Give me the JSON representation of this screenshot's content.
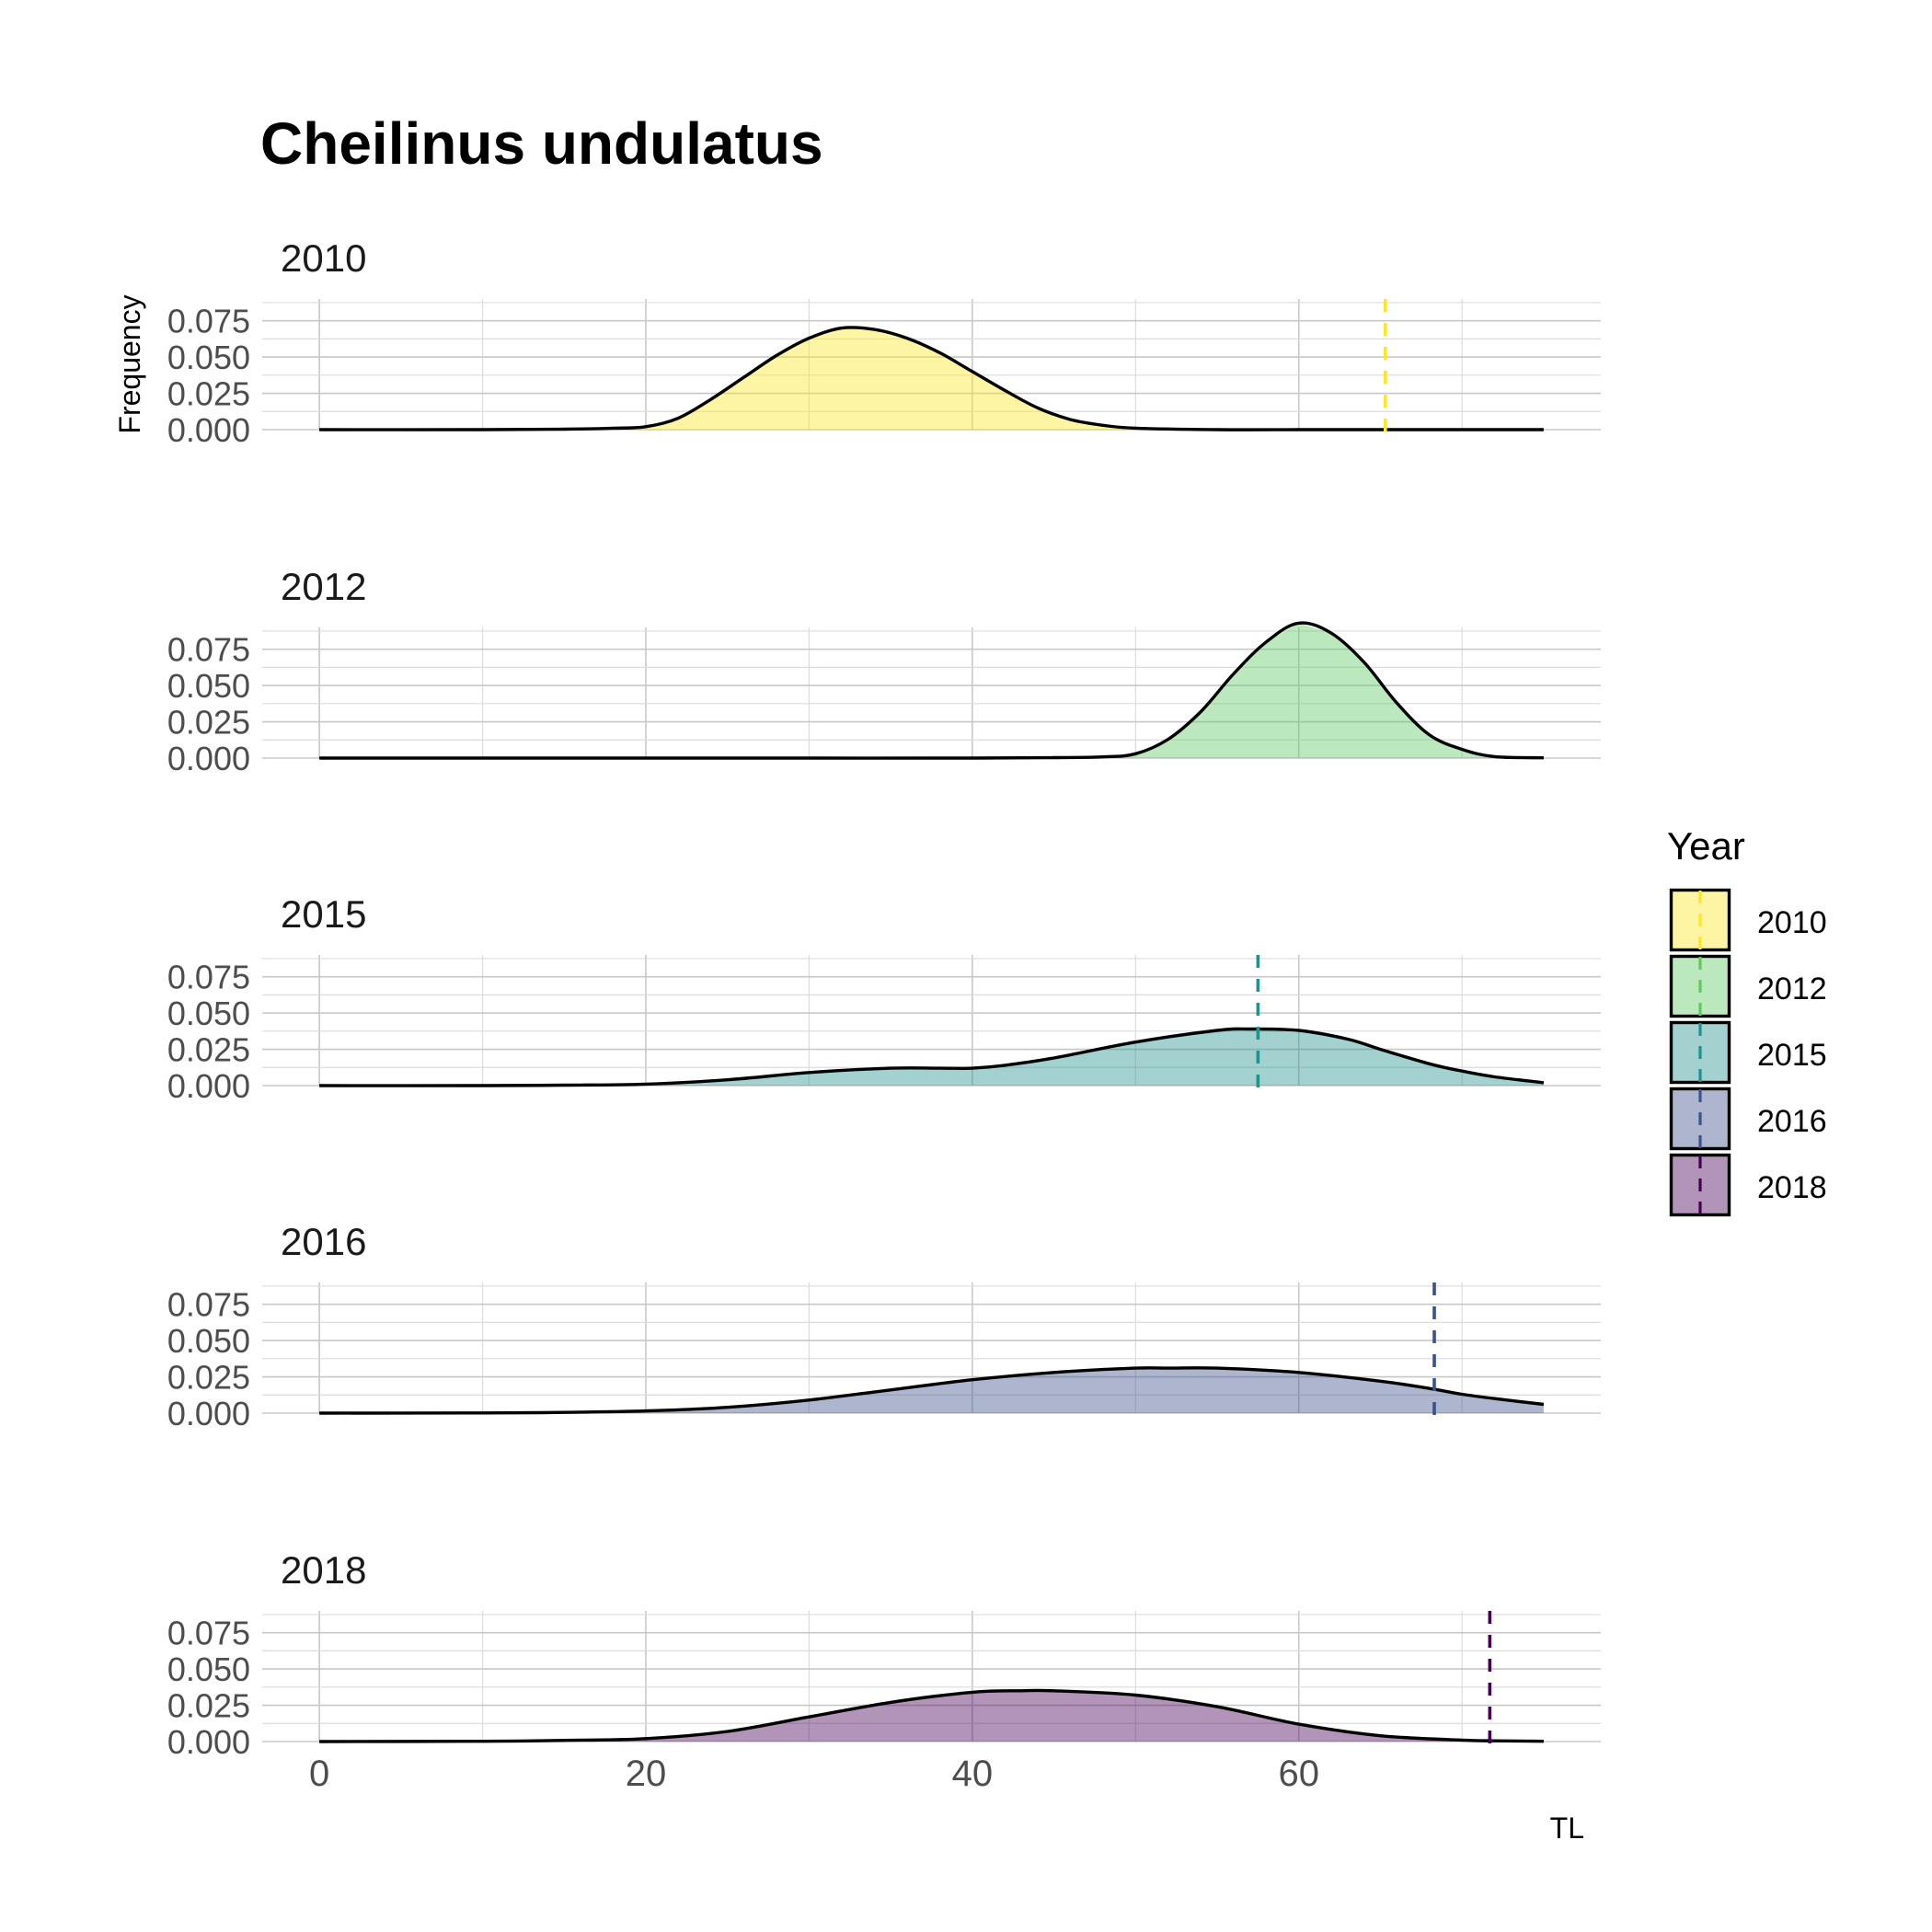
{
  "chart_data": {
    "type": "area",
    "title": "Cheilinus undulatus",
    "xlabel": "TL",
    "ylabel": "Frequency",
    "xlim": [
      -3.5,
      78.5
    ],
    "ylim": [
      0,
      0.09
    ],
    "x_ticks": [
      0,
      20,
      40,
      60
    ],
    "y_ticks": [
      0.0,
      0.025,
      0.05,
      0.075
    ],
    "y_tick_labels": [
      "0.000",
      "0.025",
      "0.050",
      "0.075"
    ],
    "grid": true,
    "legend": {
      "title": "Year",
      "position": "right",
      "entries": [
        "2010",
        "2012",
        "2015",
        "2016",
        "2018"
      ]
    },
    "panels": [
      {
        "label": "2010",
        "fill": "#FDE725",
        "line": "#FDE725",
        "cutoff": 65.3,
        "x": [
          0,
          10,
          15,
          18,
          20,
          22,
          24,
          26,
          28,
          30,
          32,
          34,
          36,
          38,
          40,
          42,
          44,
          46,
          48,
          50,
          55,
          60,
          65,
          70,
          75
        ],
        "y": [
          0,
          0,
          0.0003,
          0.001,
          0.002,
          0.008,
          0.021,
          0.036,
          0.051,
          0.063,
          0.07,
          0.069,
          0.063,
          0.053,
          0.04,
          0.027,
          0.015,
          0.007,
          0.003,
          0.001,
          0,
          0,
          0,
          0,
          0
        ]
      },
      {
        "label": "2012",
        "fill": "#5EC962",
        "line": "#5EC962",
        "cutoff": null,
        "x": [
          0,
          10,
          20,
          30,
          40,
          45,
          48,
          50,
          52,
          54,
          56,
          58,
          60,
          62,
          64,
          66,
          68,
          70,
          72,
          75
        ],
        "y": [
          0,
          0,
          0,
          0,
          0,
          0.0003,
          0.0008,
          0.003,
          0.013,
          0.032,
          0.058,
          0.08,
          0.093,
          0.086,
          0.066,
          0.038,
          0.016,
          0.006,
          0.001,
          0.0002
        ]
      },
      {
        "label": "2015",
        "fill": "#21918C",
        "line": "#21918C",
        "cutoff": 57.5,
        "x": [
          0,
          10,
          15,
          20,
          25,
          30,
          35,
          38,
          40,
          42,
          45,
          50,
          55,
          57,
          60,
          63,
          65,
          68,
          70,
          72,
          75
        ],
        "y": [
          0,
          0,
          0.0003,
          0.001,
          0.004,
          0.009,
          0.012,
          0.012,
          0.012,
          0.014,
          0.019,
          0.03,
          0.038,
          0.039,
          0.038,
          0.032,
          0.025,
          0.015,
          0.01,
          0.006,
          0.002
        ]
      },
      {
        "label": "2016",
        "fill": "#3B528B",
        "line": "#3B528B",
        "cutoff": 68.3,
        "x": [
          0,
          10,
          15,
          20,
          25,
          30,
          35,
          40,
          45,
          50,
          52,
          55,
          60,
          65,
          68,
          70,
          72,
          75
        ],
        "y": [
          0,
          0.0001,
          0.0005,
          0.0015,
          0.004,
          0.009,
          0.016,
          0.023,
          0.028,
          0.031,
          0.031,
          0.031,
          0.028,
          0.022,
          0.017,
          0.013,
          0.01,
          0.006
        ]
      },
      {
        "label": "2018",
        "fill": "#440154",
        "line": "#440154",
        "cutoff": 71.7,
        "x": [
          0,
          10,
          15,
          20,
          25,
          30,
          35,
          40,
          43,
          45,
          50,
          55,
          60,
          65,
          70,
          72,
          75
        ],
        "y": [
          0,
          0.0002,
          0.0008,
          0.002,
          0.007,
          0.017,
          0.027,
          0.034,
          0.035,
          0.035,
          0.032,
          0.024,
          0.012,
          0.004,
          0.001,
          0.0005,
          0.0002
        ]
      }
    ]
  }
}
